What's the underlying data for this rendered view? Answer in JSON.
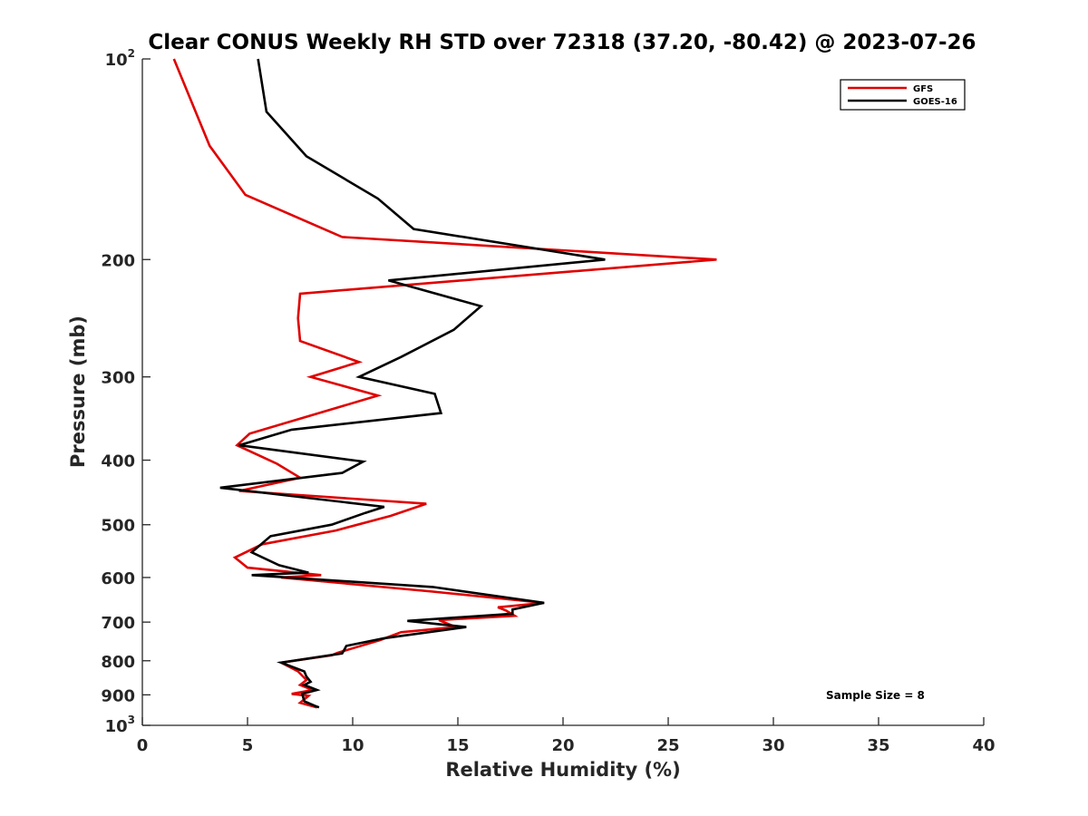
{
  "chart_data": {
    "type": "line",
    "title": "Clear CONUS Weekly RH STD over 72318 (37.20, -80.42) @ 2023-07-26",
    "xlabel": "Relative Humidity (%)",
    "ylabel": "Pressure (mb)",
    "xlim": [
      0,
      40
    ],
    "ylim": [
      100,
      1000
    ],
    "y_scale": "log",
    "y_reversed": true,
    "x_ticks": [
      0,
      5,
      10,
      15,
      20,
      25,
      30,
      35,
      40
    ],
    "y_ticks": [
      {
        "value": 100,
        "label": "10",
        "sup": "2"
      },
      {
        "value": 200,
        "label": "200"
      },
      {
        "value": 300,
        "label": "300"
      },
      {
        "value": 400,
        "label": "400"
      },
      {
        "value": 500,
        "label": "500"
      },
      {
        "value": 600,
        "label": "600"
      },
      {
        "value": 700,
        "label": "700"
      },
      {
        "value": 800,
        "label": "800"
      },
      {
        "value": 900,
        "label": "900"
      },
      {
        "value": 1000,
        "label": "10",
        "sup": "3"
      }
    ],
    "grid": false,
    "legend_position": "top-right",
    "series": [
      {
        "name": "GFS",
        "color": "#e00000",
        "points": [
          [
            1.5,
            100
          ],
          [
            3.2,
            135
          ],
          [
            4.9,
            160
          ],
          [
            9.5,
            185
          ],
          [
            27.3,
            200
          ],
          [
            7.5,
            225
          ],
          [
            7.4,
            245
          ],
          [
            7.5,
            265
          ],
          [
            10.3,
            285
          ],
          [
            8.0,
            300
          ],
          [
            11.2,
            320
          ],
          [
            5.1,
            365
          ],
          [
            4.5,
            380
          ],
          [
            6.4,
            405
          ],
          [
            7.5,
            425
          ],
          [
            4.6,
            445
          ],
          [
            13.5,
            465
          ],
          [
            11.8,
            485
          ],
          [
            9.2,
            510
          ],
          [
            5.7,
            535
          ],
          [
            4.4,
            560
          ],
          [
            5.0,
            580
          ],
          [
            8.5,
            595
          ],
          [
            6.6,
            600
          ],
          [
            13.8,
            630
          ],
          [
            19.1,
            655
          ],
          [
            16.9,
            665
          ],
          [
            17.3,
            673
          ],
          [
            17.7,
            685
          ],
          [
            14.1,
            695
          ],
          [
            14.9,
            712
          ],
          [
            12.3,
            725
          ],
          [
            11.3,
            745
          ],
          [
            9.3,
            778
          ],
          [
            9.0,
            785
          ],
          [
            6.6,
            805
          ],
          [
            7.4,
            830
          ],
          [
            7.8,
            855
          ],
          [
            7.5,
            870
          ],
          [
            8.1,
            885
          ],
          [
            7.1,
            897
          ],
          [
            7.9,
            903
          ],
          [
            7.5,
            925
          ],
          [
            8.3,
            940
          ]
        ]
      },
      {
        "name": "GOES-16",
        "color": "#000000",
        "points": [
          [
            5.5,
            100
          ],
          [
            5.9,
            120
          ],
          [
            7.8,
            140
          ],
          [
            11.2,
            162
          ],
          [
            12.9,
            180
          ],
          [
            22.0,
            200
          ],
          [
            11.7,
            215
          ],
          [
            16.1,
            235
          ],
          [
            14.8,
            255
          ],
          [
            12.3,
            280
          ],
          [
            10.3,
            300
          ],
          [
            13.9,
            318
          ],
          [
            14.2,
            340
          ],
          [
            7.1,
            360
          ],
          [
            4.6,
            380
          ],
          [
            10.5,
            402
          ],
          [
            9.5,
            418
          ],
          [
            3.7,
            440
          ],
          [
            11.5,
            470
          ],
          [
            10.6,
            480
          ],
          [
            9.0,
            500
          ],
          [
            6.1,
            520
          ],
          [
            5.2,
            550
          ],
          [
            6.5,
            575
          ],
          [
            7.9,
            590
          ],
          [
            5.2,
            595
          ],
          [
            13.8,
            620
          ],
          [
            19.1,
            655
          ],
          [
            17.6,
            670
          ],
          [
            17.6,
            680
          ],
          [
            12.6,
            697
          ],
          [
            15.4,
            712
          ],
          [
            11.5,
            740
          ],
          [
            9.7,
            760
          ],
          [
            9.5,
            780
          ],
          [
            6.6,
            805
          ],
          [
            7.7,
            830
          ],
          [
            7.8,
            845
          ],
          [
            8.0,
            860
          ],
          [
            7.7,
            870
          ],
          [
            8.3,
            885
          ],
          [
            7.6,
            897
          ],
          [
            7.7,
            920
          ],
          [
            8.2,
            935
          ],
          [
            8.4,
            940
          ]
        ]
      }
    ],
    "annotations": [
      "Sample Size = 8"
    ]
  }
}
